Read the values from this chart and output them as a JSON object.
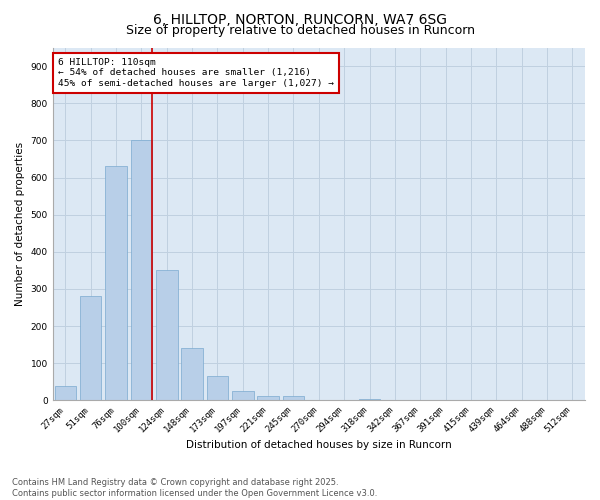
{
  "title1": "6, HILLTOP, NORTON, RUNCORN, WA7 6SG",
  "title2": "Size of property relative to detached houses in Runcorn",
  "xlabel": "Distribution of detached houses by size in Runcorn",
  "ylabel": "Number of detached properties",
  "categories": [
    "27sqm",
    "51sqm",
    "76sqm",
    "100sqm",
    "124sqm",
    "148sqm",
    "173sqm",
    "197sqm",
    "221sqm",
    "245sqm",
    "270sqm",
    "294sqm",
    "318sqm",
    "342sqm",
    "367sqm",
    "391sqm",
    "415sqm",
    "439sqm",
    "464sqm",
    "488sqm",
    "512sqm"
  ],
  "values": [
    40,
    280,
    630,
    700,
    350,
    140,
    65,
    25,
    12,
    12,
    0,
    0,
    5,
    0,
    0,
    0,
    0,
    0,
    0,
    0,
    0
  ],
  "bar_color": "#b8cfe8",
  "bar_edge_color": "#7aaad0",
  "grid_color": "#c0d0e0",
  "background_color": "#dce8f4",
  "annotation_text": "6 HILLTOP: 110sqm\n← 54% of detached houses are smaller (1,216)\n45% of semi-detached houses are larger (1,027) →",
  "annotation_box_color": "#ffffff",
  "annotation_border_color": "#cc0000",
  "vline_color": "#cc0000",
  "ylim": [
    0,
    950
  ],
  "yticks": [
    0,
    100,
    200,
    300,
    400,
    500,
    600,
    700,
    800,
    900
  ],
  "footer_text": "Contains HM Land Registry data © Crown copyright and database right 2025.\nContains public sector information licensed under the Open Government Licence v3.0.",
  "title_fontsize": 10,
  "subtitle_fontsize": 9,
  "axis_label_fontsize": 7.5,
  "tick_fontsize": 6.5,
  "annotation_fontsize": 6.8,
  "footer_fontsize": 6
}
